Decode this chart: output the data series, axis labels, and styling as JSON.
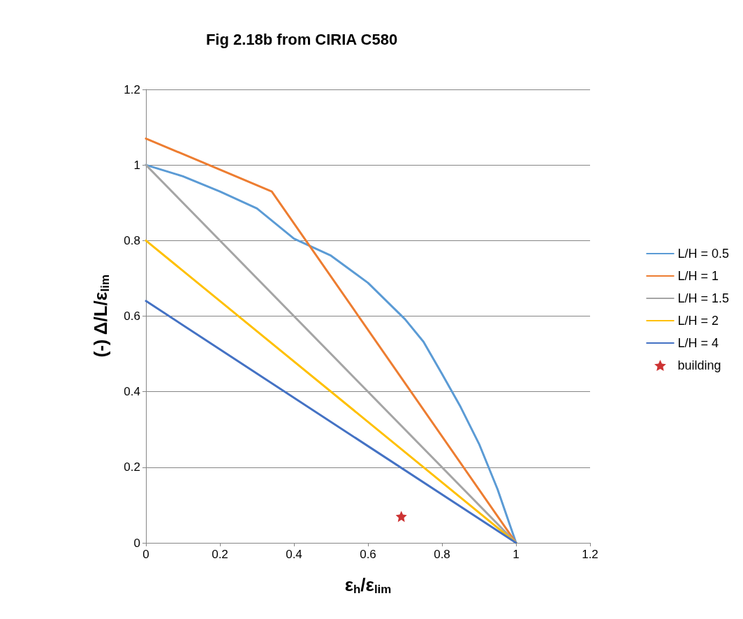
{
  "chart_data": {
    "type": "line",
    "title": "Fig 2.18b from CIRIA C580",
    "xlabel": "ε$_{h}$/ε$_{lim}$",
    "ylabel": "(-) Δ/L/ε$_{lim}$",
    "xlim": [
      0,
      1.2
    ],
    "xticks": [
      0,
      0.2,
      0.4,
      0.6,
      0.8,
      1,
      1.2
    ],
    "ylim": [
      0,
      1.2
    ],
    "yticks": [
      0,
      0.2,
      0.4,
      0.6,
      0.8,
      1,
      1.2
    ],
    "grid": "y",
    "legend": "right",
    "line_style": "solid",
    "series": [
      {
        "name": "L/H = 0.5",
        "color": "#5b9bd5",
        "type": "line",
        "marker": "none",
        "x": [
          0,
          0.1,
          0.2,
          0.3,
          0.4,
          0.5,
          0.6,
          0.7,
          0.75,
          0.8,
          0.85,
          0.9,
          0.95,
          1
        ],
        "values": [
          1,
          0.97,
          0.93,
          0.885,
          0.805,
          0.76,
          0.688,
          0.592,
          0.532,
          0.447,
          0.36,
          0.262,
          0.142,
          0
        ]
      },
      {
        "name": "L/H = 1",
        "color": "#ed7d31",
        "type": "line",
        "marker": "none",
        "x": [
          0,
          0.34,
          1
        ],
        "values": [
          1.07,
          0.93,
          0
        ]
      },
      {
        "name": "L/H = 1.5",
        "color": "#a5a5a5",
        "type": "line",
        "marker": "none",
        "x": [
          0,
          1
        ],
        "values": [
          1,
          0
        ]
      },
      {
        "name": "L/H = 2",
        "color": "#ffc000",
        "type": "line",
        "marker": "none",
        "x": [
          0,
          1
        ],
        "values": [
          0.8,
          0
        ]
      },
      {
        "name": "L/H = 4",
        "color": "#4472c4",
        "type": "line",
        "marker": "none",
        "x": [
          0,
          1
        ],
        "values": [
          0.64,
          0
        ]
      },
      {
        "name": "building",
        "color": "#c00000",
        "type": "scatter",
        "marker": "star",
        "x": [
          0.69
        ],
        "values": [
          0.07
        ]
      }
    ]
  }
}
